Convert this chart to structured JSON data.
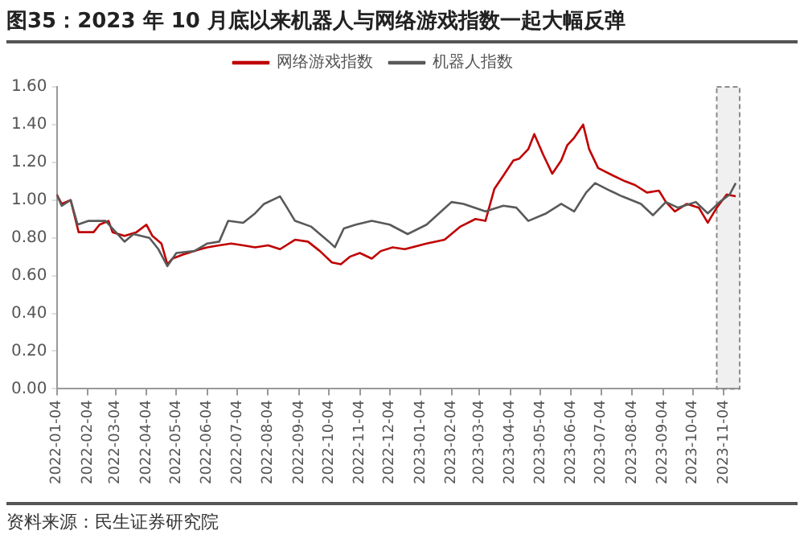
{
  "chart_data": {
    "type": "line",
    "title": "图35：2023 年 10 月底以来机器人与网络游戏指数一起大幅反弹",
    "annotations": [
      "资料来源：民生证券研究院"
    ],
    "legend": "top",
    "grid": false,
    "marker": "none",
    "line_style": "solid",
    "xlim": [
      "2022-01-04",
      "2023-11-20"
    ],
    "xticks": [
      "2022-01-04",
      "2022-02-04",
      "2022-03-04",
      "2022-04-04",
      "2022-05-04",
      "2022-06-04",
      "2022-07-04",
      "2022-08-04",
      "2022-09-04",
      "2022-10-04",
      "2022-11-04",
      "2022-12-04",
      "2023-01-04",
      "2023-02-04",
      "2023-03-04",
      "2023-04-04",
      "2023-05-04",
      "2023-06-04",
      "2023-07-04",
      "2023-08-04",
      "2023-09-04",
      "2023-10-04",
      "2023-11-04"
    ],
    "ylim": [
      0,
      1.6
    ],
    "yticks": [
      {
        "value": 0,
        "label": "0.00"
      },
      {
        "value": 0.2,
        "label": "0.20"
      },
      {
        "value": 0.4,
        "label": "0.40"
      },
      {
        "value": 0.6,
        "label": "0.60"
      },
      {
        "value": 0.8,
        "label": "0.80"
      },
      {
        "value": 1,
        "label": "1.00"
      },
      {
        "value": 1.2,
        "label": "1.20"
      },
      {
        "value": 1.4,
        "label": "1.40"
      },
      {
        "value": 1.6,
        "label": "1.60"
      }
    ],
    "bands": [
      {
        "axis": "x",
        "from": "2023-10-28",
        "to": "2023-11-20",
        "color": "#8c8c8c"
      }
    ],
    "series": [
      {
        "name": "网络游戏指数",
        "color": "#c00000",
        "x": [
          "2022-01-04",
          "2022-01-09",
          "2022-01-18",
          "2022-01-26",
          "2022-02-10",
          "2022-02-16",
          "2022-02-25",
          "2022-03-01",
          "2022-03-13",
          "2022-03-25",
          "2022-04-04",
          "2022-04-10",
          "2022-04-19",
          "2022-04-25",
          "2022-04-30",
          "2022-05-10",
          "2022-05-22",
          "2022-06-04",
          "2022-06-16",
          "2022-06-28",
          "2022-07-10",
          "2022-07-22",
          "2022-08-04",
          "2022-08-16",
          "2022-08-31",
          "2022-09-13",
          "2022-09-25",
          "2022-10-07",
          "2022-10-16",
          "2022-10-25",
          "2022-11-04",
          "2022-11-16",
          "2022-11-25",
          "2022-12-07",
          "2022-12-19",
          "2023-01-10",
          "2023-01-28",
          "2023-02-13",
          "2023-02-28",
          "2023-03-10",
          "2023-03-19",
          "2023-03-28",
          "2023-04-07",
          "2023-04-13",
          "2023-04-22",
          "2023-04-28",
          "2023-05-07",
          "2023-05-16",
          "2023-05-25",
          "2023-05-31",
          "2023-06-07",
          "2023-06-16",
          "2023-06-22",
          "2023-07-01",
          "2023-07-16",
          "2023-07-28",
          "2023-08-07",
          "2023-08-19",
          "2023-08-31",
          "2023-09-07",
          "2023-09-16",
          "2023-09-28",
          "2023-10-10",
          "2023-10-19",
          "2023-10-28",
          "2023-11-07",
          "2023-11-16"
        ],
        "values": [
          1.03,
          0.98,
          1.0,
          0.83,
          0.83,
          0.87,
          0.89,
          0.83,
          0.81,
          0.83,
          0.87,
          0.81,
          0.77,
          0.66,
          0.69,
          0.71,
          0.73,
          0.75,
          0.76,
          0.77,
          0.76,
          0.75,
          0.76,
          0.74,
          0.79,
          0.78,
          0.73,
          0.67,
          0.66,
          0.7,
          0.72,
          0.69,
          0.73,
          0.75,
          0.74,
          0.77,
          0.79,
          0.86,
          0.9,
          0.89,
          1.06,
          1.13,
          1.21,
          1.22,
          1.27,
          1.35,
          1.24,
          1.14,
          1.21,
          1.29,
          1.33,
          1.4,
          1.27,
          1.17,
          1.13,
          1.1,
          1.08,
          1.04,
          1.05,
          0.99,
          0.94,
          0.98,
          0.96,
          0.88,
          0.96,
          1.03,
          1.02
        ]
      },
      {
        "name": "机器人指数",
        "color": "#595959",
        "x": [
          "2022-01-04",
          "2022-01-09",
          "2022-01-18",
          "2022-01-25",
          "2022-02-05",
          "2022-02-22",
          "2022-03-13",
          "2022-03-22",
          "2022-04-07",
          "2022-04-16",
          "2022-04-25",
          "2022-05-04",
          "2022-05-22",
          "2022-06-04",
          "2022-06-16",
          "2022-06-25",
          "2022-07-10",
          "2022-07-22",
          "2022-07-31",
          "2022-08-16",
          "2022-08-23",
          "2022-08-31",
          "2022-09-16",
          "2022-10-04",
          "2022-10-10",
          "2022-10-19",
          "2022-10-31",
          "2022-11-16",
          "2022-12-04",
          "2022-12-22",
          "2023-01-10",
          "2023-02-04",
          "2023-02-16",
          "2023-03-10",
          "2023-03-28",
          "2023-04-10",
          "2023-04-22",
          "2023-05-10",
          "2023-05-25",
          "2023-06-07",
          "2023-06-19",
          "2023-06-28",
          "2023-07-13",
          "2023-07-25",
          "2023-08-13",
          "2023-08-25",
          "2023-09-07",
          "2023-09-19",
          "2023-10-07",
          "2023-10-19",
          "2023-10-31",
          "2023-11-10",
          "2023-11-16"
        ],
        "values": [
          1.03,
          0.97,
          1.0,
          0.87,
          0.89,
          0.89,
          0.78,
          0.82,
          0.8,
          0.74,
          0.65,
          0.72,
          0.73,
          0.77,
          0.78,
          0.89,
          0.88,
          0.93,
          0.98,
          1.02,
          0.96,
          0.89,
          0.86,
          0.78,
          0.75,
          0.85,
          0.87,
          0.89,
          0.87,
          0.82,
          0.87,
          0.99,
          0.98,
          0.94,
          0.97,
          0.96,
          0.89,
          0.93,
          0.98,
          0.94,
          1.04,
          1.09,
          1.05,
          1.02,
          0.98,
          0.92,
          0.99,
          0.96,
          0.99,
          0.93,
          0.99,
          1.03,
          1.09
        ]
      }
    ]
  }
}
